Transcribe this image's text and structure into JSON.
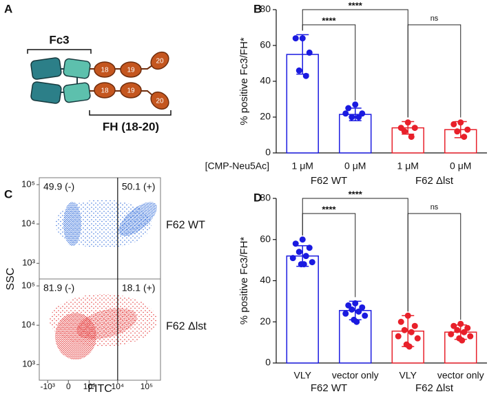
{
  "panel_labels": {
    "a": "A",
    "b": "B",
    "c": "C",
    "d": "D"
  },
  "diagram": {
    "fc_label": "Fc3",
    "fh_label": "FH (18-20)",
    "domains": [
      "18",
      "19",
      "20"
    ]
  },
  "chart_data": [
    {
      "type": "bar",
      "ylabel": "% positive Fc3/FH*",
      "row_label": "[CMP-Neu5Ac]",
      "categories": [
        "1 μM",
        "0 μM",
        "1 μM",
        "0 μM"
      ],
      "values": [
        55,
        21.5,
        14,
        13
      ],
      "errors": [
        11,
        3.5,
        3.5,
        4.5
      ],
      "points": [
        [
          64,
          64,
          56,
          46,
          43
        ],
        [
          27,
          25,
          22,
          20,
          20,
          22
        ],
        [
          17,
          14,
          14,
          12,
          9
        ],
        [
          17,
          16,
          13,
          12,
          9
        ]
      ],
      "colors": [
        "#1a1ae0",
        "#1a1ae0",
        "#e8202a",
        "#e8202a"
      ],
      "groups": [
        {
          "name": "F62 WT",
          "members": [
            0,
            1
          ]
        },
        {
          "name": "F62 Δlst",
          "members": [
            2,
            3
          ]
        }
      ],
      "annotations": [
        {
          "text": "****",
          "from": 0,
          "to": 2
        },
        {
          "text": "****",
          "from": 0,
          "to": 1
        },
        {
          "text": "ns",
          "from": 2,
          "to": 3
        }
      ],
      "ylim": [
        0,
        80
      ],
      "yticks": [
        0,
        20,
        40,
        60,
        80
      ]
    },
    {
      "type": "flow",
      "xlabel": "FITC",
      "ylabel": "SSC",
      "xscale": "logicle",
      "yscale": "log",
      "xlim": [
        -2000,
        300000
      ],
      "ylim": [
        400,
        150000
      ],
      "xticks": [
        {
          "value": -1000,
          "label": "-10³"
        },
        0,
        {
          "value": 1000,
          "label": "10³"
        },
        {
          "value": 10000,
          "label": "10⁴"
        },
        {
          "value": 100000,
          "label": "10⁵"
        }
      ],
      "yticks": [
        {
          "value": 1000,
          "label": "10³"
        },
        {
          "value": 10000,
          "label": "10⁴"
        },
        {
          "value": 100000,
          "label": "10⁵"
        }
      ],
      "gate": 10000,
      "series": [
        {
          "name": "F62 WT",
          "color": "#1f5fd6",
          "values": [
            49.9,
            50.1
          ],
          "value_labels": [
            "49.9 (-)",
            "50.1 (+)"
          ]
        },
        {
          "name": "F62 Δlst",
          "color": "#e02020",
          "values": [
            81.9,
            18.1
          ],
          "value_labels": [
            "81.9 (-)",
            "18.1 (+)"
          ]
        }
      ]
    },
    {
      "type": "bar",
      "ylabel": "% positive Fc3/FH*",
      "categories": [
        "VLY",
        "vector only",
        "VLY",
        "vector only"
      ],
      "values": [
        52,
        25.5,
        15.5,
        15
      ],
      "errors": [
        5,
        4.5,
        7.5,
        3.5
      ],
      "points": [
        [
          60,
          58,
          56,
          54,
          52,
          51,
          49,
          48,
          48
        ],
        [
          29,
          28,
          27,
          26,
          25,
          24,
          23,
          21,
          20
        ],
        [
          23,
          20,
          18,
          16,
          15,
          13,
          12,
          9,
          8
        ],
        [
          19,
          18,
          17,
          16,
          15,
          14,
          13,
          12,
          11
        ]
      ],
      "colors": [
        "#1a1ae0",
        "#1a1ae0",
        "#e8202a",
        "#e8202a"
      ],
      "groups": [
        {
          "name": "F62 WT",
          "members": [
            0,
            1
          ]
        },
        {
          "name": "F62 Δlst",
          "members": [
            2,
            3
          ]
        }
      ],
      "annotations": [
        {
          "text": "****",
          "from": 0,
          "to": 2
        },
        {
          "text": "****",
          "from": 0,
          "to": 1
        },
        {
          "text": "ns",
          "from": 2,
          "to": 3
        }
      ],
      "ylim": [
        0,
        80
      ],
      "yticks": [
        0,
        20,
        40,
        60,
        80
      ]
    }
  ]
}
